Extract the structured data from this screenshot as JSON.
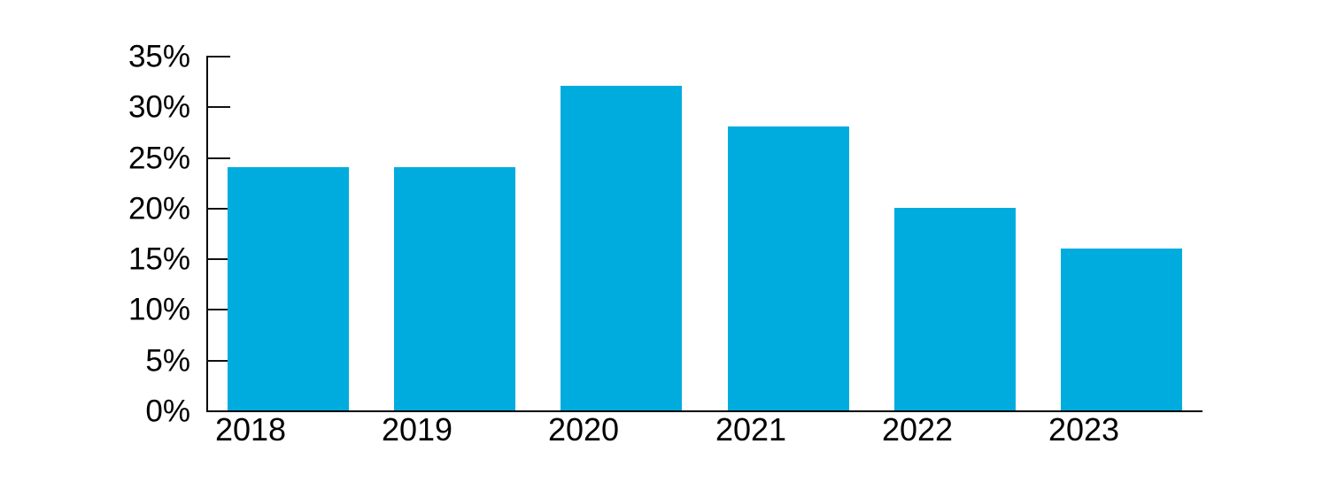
{
  "chart_data": {
    "type": "bar",
    "title": "",
    "xlabel": "",
    "ylabel": "",
    "categories": [
      "2018",
      "2019",
      "2020",
      "2021",
      "2022",
      "2023"
    ],
    "values": [
      24,
      24,
      32,
      28,
      20,
      16
    ],
    "value_unit": "%",
    "y_tick_labels": [
      "0%",
      "5%",
      "10%",
      "15%",
      "20%",
      "25%",
      "30%",
      "35%"
    ],
    "y_tick_values": [
      0,
      5,
      10,
      15,
      20,
      25,
      30,
      35
    ],
    "ylim": [
      0,
      35
    ],
    "grid": false,
    "legend": null,
    "colors": {
      "bar": "#00ACDE",
      "axis": "#000000",
      "text": "#000000",
      "background": "#ffffff"
    }
  }
}
